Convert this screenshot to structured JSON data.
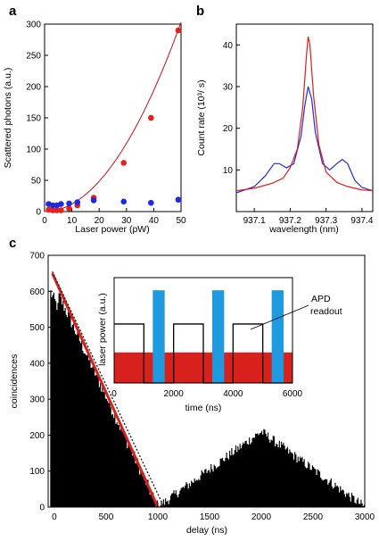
{
  "chart_data": [
    {
      "panel": "a",
      "type": "scatter",
      "xlabel": "Laser power  (pW)",
      "ylabel": "Scattered photons (a.u.)",
      "xlim": [
        0,
        50
      ],
      "ylim": [
        0,
        300
      ],
      "xticks": [
        0,
        10,
        20,
        30,
        40,
        50
      ],
      "yticks": [
        0,
        50,
        100,
        150,
        200,
        250,
        300
      ],
      "series": [
        {
          "color": "#e8201c",
          "x": [
            1.5,
            3,
            4.5,
            6,
            9,
            12,
            18,
            29,
            39,
            49
          ],
          "y": [
            3,
            2,
            2,
            2,
            5,
            10,
            22,
            78,
            150,
            290
          ]
        },
        {
          "color": "#1c2ae0",
          "x": [
            1.5,
            3,
            4.5,
            6,
            9,
            12,
            18,
            29,
            39,
            49
          ],
          "y": [
            12,
            10,
            10,
            12,
            13,
            15,
            18,
            16,
            14,
            19
          ]
        }
      ],
      "fit": {
        "color": "#c0141c",
        "coefficient": 0.1212,
        "exponent": 2
      }
    },
    {
      "panel": "b",
      "type": "line",
      "xlabel": "wavelength (nm)",
      "ylabel": "Count rate (10³/ s)",
      "xlim": [
        937.05,
        937.43
      ],
      "ylim": [
        0,
        45
      ],
      "xticks": [
        937.1,
        937.2,
        937.3,
        937.4
      ],
      "yticks": [
        10,
        20,
        30,
        40
      ],
      "series": [
        {
          "color": "#e01c1c",
          "x": [
            937.05,
            937.1,
            937.15,
            937.18,
            937.2,
            937.22,
            937.235,
            937.245,
            937.25,
            937.255,
            937.265,
            937.28,
            937.3,
            937.33,
            937.36,
            937.4,
            937.43
          ],
          "y": [
            5,
            5.6,
            6.8,
            8,
            10.5,
            15,
            25,
            37,
            42,
            40,
            28,
            16,
            9.5,
            7,
            6,
            5.2,
            5
          ]
        },
        {
          "color": "#1c2ee0",
          "x": [
            937.05,
            937.1,
            937.13,
            937.155,
            937.17,
            937.19,
            937.21,
            937.23,
            937.24,
            937.25,
            937.26,
            937.27,
            937.29,
            937.31,
            937.33,
            937.345,
            937.36,
            937.38,
            937.4,
            937.43
          ],
          "y": [
            4.5,
            6,
            8.5,
            11.5,
            11.5,
            10.5,
            11.5,
            18,
            25,
            30,
            27,
            19,
            11.5,
            10,
            11.5,
            12.5,
            11.5,
            7.5,
            5.8,
            5
          ]
        }
      ]
    },
    {
      "panel": "c",
      "type": "bar",
      "xlabel": "delay (ns)",
      "ylabel": "coincidences",
      "xlim": [
        -60,
        3000
      ],
      "ylim": [
        0,
        700
      ],
      "xticks": [
        0,
        500,
        1000,
        1500,
        2000,
        2500,
        3000
      ],
      "yticks": [
        0,
        100,
        200,
        300,
        400,
        500,
        600,
        700
      ],
      "histogram": {
        "color": "#000000",
        "bin_width": 10,
        "first_peak": {
          "start": -40,
          "end": 1000,
          "peak": 640,
          "noise": 18
        },
        "second_peak": {
          "center": 2000,
          "peak": 210,
          "start": 1000,
          "end": 3000,
          "noise": 14
        }
      },
      "lines": [
        {
          "style": "solid",
          "color": "#d8201c",
          "x": [
            -20,
            1000
          ],
          "y": [
            650,
            0
          ]
        },
        {
          "style": "dashed",
          "color": "#1a1a1a",
          "x": [
            -20,
            1060
          ],
          "y": [
            655,
            0
          ]
        }
      ],
      "inset": {
        "xlabel": "time (ns)",
        "ylabel": "laser power (a.u.)",
        "xlim": [
          0,
          6000
        ],
        "ylim": [
          0,
          1
        ],
        "xticks": [
          0,
          2000,
          4000,
          6000
        ],
        "red_band": {
          "color": "#d8201c",
          "level": 0.29
        },
        "blue_pulses": {
          "color": "#1e9be0",
          "starts": [
            1300,
            3300,
            5300
          ],
          "width": 400,
          "height": 0.88
        },
        "square_wave": {
          "color": "#000000",
          "high": 0.56,
          "low": 0,
          "x": [
            0,
            1000,
            1000,
            2000,
            2000,
            3000,
            3000,
            4000,
            4000,
            5000,
            5000,
            6000
          ],
          "y": [
            0.56,
            0.56,
            0,
            0,
            0.56,
            0.56,
            0,
            0,
            0.56,
            0.56,
            0,
            0
          ]
        },
        "annotation": {
          "line1": "APD",
          "line2": "readout"
        }
      }
    }
  ],
  "panels": {
    "a": "a",
    "b": "b",
    "c": "c"
  }
}
